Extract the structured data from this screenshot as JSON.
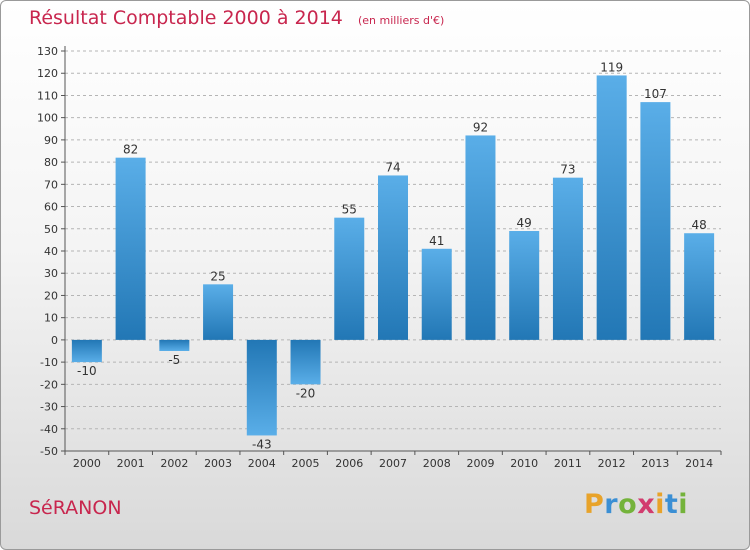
{
  "title": "Résultat Comptable 2000 à 2014",
  "subtitle": "(en milliers d'€)",
  "commune": "SéRANON",
  "logo": {
    "letters": [
      "P",
      "r",
      "o",
      "x",
      "i",
      "t",
      "i"
    ],
    "colors": [
      "#e8a32a",
      "#3b8fd4",
      "#74b33b",
      "#d23c6e",
      "#e8a32a",
      "#3b8fd4",
      "#74b33b"
    ]
  },
  "colors": {
    "title": "#c8264e",
    "bar_light": "#5aaee8",
    "bar_dark": "#2277b5"
  },
  "chart_data": {
    "type": "bar",
    "title": "Résultat Comptable 2000 à 2014",
    "subtitle": "(en milliers d'€)",
    "xlabel": "",
    "ylabel": "",
    "categories": [
      "2000",
      "2001",
      "2002",
      "2003",
      "2004",
      "2005",
      "2006",
      "2007",
      "2008",
      "2009",
      "2010",
      "2011",
      "2012",
      "2013",
      "2014"
    ],
    "values": [
      -10,
      82,
      -5,
      25,
      -43,
      -20,
      55,
      74,
      41,
      92,
      49,
      73,
      119,
      107,
      48
    ],
    "ylim": [
      -50,
      130
    ],
    "yticks": [
      130,
      120,
      110,
      100,
      90,
      80,
      70,
      60,
      50,
      40,
      30,
      20,
      10,
      0,
      -10,
      -20,
      -30,
      -40,
      -50
    ],
    "grid": "horizontal dashed",
    "legend": "none"
  }
}
